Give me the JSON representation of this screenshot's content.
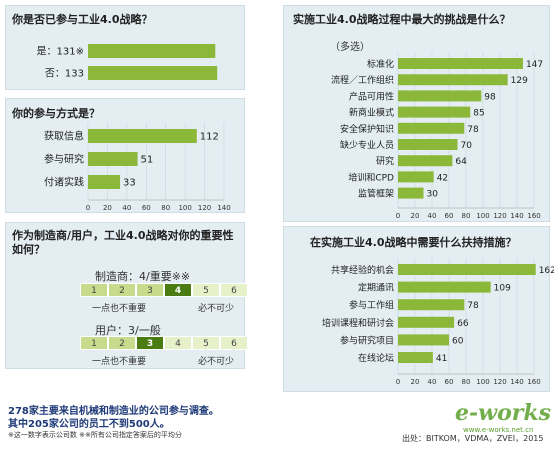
{
  "colors": {
    "bar": "#8cb83a",
    "panel": "#e3edf2",
    "dark": "#4a7c12",
    "mid": "#c6dc8c",
    "light": "#e6f0c9",
    "brand": "#5aa02c"
  },
  "chart_data": [
    {
      "type": "bar",
      "orientation": "horizontal",
      "title": "你是否已参与工业4.0战略？",
      "categories": [
        "是：131※",
        "否：133"
      ],
      "values": [
        131,
        133
      ],
      "xlim": [
        0,
        140
      ],
      "axis_shown": false
    },
    {
      "type": "bar",
      "orientation": "horizontal",
      "title": "你的参与方式是？",
      "categories": [
        "获取信息",
        "参与研究",
        "付诸实践"
      ],
      "values": [
        112,
        51,
        33
      ],
      "xlim": [
        0,
        140
      ],
      "xticks": [
        "0",
        "20",
        "40",
        "60",
        "80",
        "100",
        "120",
        "140"
      ]
    },
    {
      "type": "bar",
      "orientation": "horizontal",
      "title": "实施工业4.0战略过程中最大的挑战是什么？",
      "subtitle": "（多选）",
      "categories": [
        "标准化",
        "流程／工作组织",
        "产品可用性",
        "新商业模式",
        "安全保护知识",
        "缺少专业人员",
        "研究",
        "培训和CPD",
        "监管框架"
      ],
      "values": [
        147,
        129,
        98,
        85,
        78,
        70,
        64,
        42,
        30
      ],
      "xlim": [
        0,
        160
      ],
      "xticks": [
        "0",
        "20",
        "40",
        "60",
        "80",
        "100",
        "120",
        "140",
        "160"
      ]
    },
    {
      "type": "bar",
      "orientation": "horizontal",
      "title": "在实施工业4.0战略中需要什么扶持措施？",
      "categories": [
        "共享经验的机会",
        "定期通讯",
        "参与工作组",
        "培训课程和研讨会",
        "参与研究项目",
        "在线论坛"
      ],
      "values": [
        162,
        109,
        78,
        66,
        60,
        41
      ],
      "xlim": [
        0,
        160
      ],
      "xticks": [
        "0",
        "20",
        "40",
        "60",
        "80",
        "100",
        "120",
        "140",
        "160"
      ]
    }
  ],
  "importance": {
    "title": "作为制造商/用户，工业4.0战略对你的重要性如何？",
    "manufacturer": {
      "label": "制造商：4/重要※※",
      "value": 4
    },
    "user": {
      "label": "用户：3/一般",
      "value": 3
    },
    "scale": [
      "1",
      "2",
      "3",
      "4",
      "5",
      "6"
    ],
    "low_label": "一点也不重要",
    "high_label": "必不可少"
  },
  "footer": {
    "line1": "278家主要来自机械和制造业的公司参与调查。",
    "line2": "其中205家公司的员工不到500人。",
    "note": "※这一数字表示公司数    ※※所有公司指定答案后的平均分",
    "source": "出处：BITKOM，VDMA，ZVEI，2015"
  },
  "logo": {
    "text": "e-works",
    "sub": "www.e-works.net.cn"
  }
}
